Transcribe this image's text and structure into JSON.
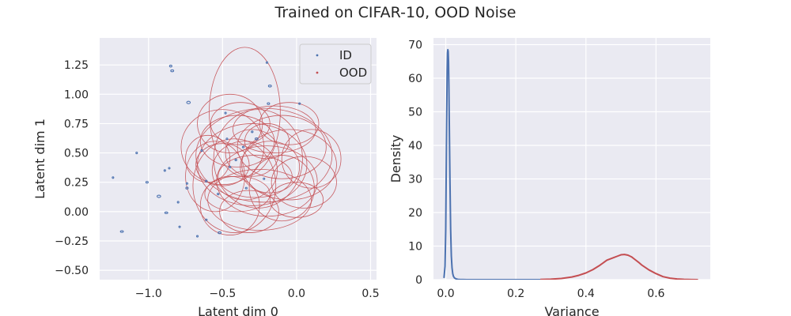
{
  "figure": {
    "title": "Trained on CIFAR-10, OOD Noise"
  },
  "colors": {
    "id": "#4c72b0",
    "ood": "#c44e52",
    "axes_bg": "#eaeaf2",
    "grid": "#ffffff"
  },
  "chart_data": [
    {
      "type": "scatter",
      "xlabel": "Latent dim 0",
      "ylabel": "Latent dim 1",
      "xlim": [
        -1.33,
        0.54
      ],
      "ylim": [
        -0.58,
        1.48
      ],
      "xticks": [
        -1.0,
        -0.5,
        0.0,
        0.5
      ],
      "xtick_labels": [
        "−1.0",
        "−0.5",
        "0.0",
        "0.5"
      ],
      "yticks": [
        -0.5,
        -0.25,
        0.0,
        0.25,
        0.5,
        0.75,
        1.0,
        1.25
      ],
      "ytick_labels": [
        "−0.50",
        "−0.25",
        "0.00",
        "0.25",
        "0.50",
        "0.75",
        "1.00",
        "1.25"
      ],
      "grid": true,
      "legend": {
        "position": "upper right",
        "entries": [
          "ID",
          "OOD"
        ]
      },
      "series": [
        {
          "name": "ID",
          "color": "#4c72b0",
          "marker": "ellipse-small",
          "points": [
            {
              "x": -0.85,
              "y": 1.24,
              "rx": 0.008,
              "ry": 0.008
            },
            {
              "x": -0.84,
              "y": 1.2,
              "rx": 0.01,
              "ry": 0.008
            },
            {
              "x": -0.2,
              "y": 1.27,
              "rx": 0.004,
              "ry": 0.004
            },
            {
              "x": -0.18,
              "y": 1.07,
              "rx": 0.01,
              "ry": 0.008
            },
            {
              "x": -0.73,
              "y": 0.93,
              "rx": 0.012,
              "ry": 0.01
            },
            {
              "x": 0.02,
              "y": 0.92,
              "rx": 0.004,
              "ry": 0.004
            },
            {
              "x": -0.19,
              "y": 0.92,
              "rx": 0.008,
              "ry": 0.008
            },
            {
              "x": -1.08,
              "y": 0.5,
              "rx": 0.005,
              "ry": 0.005
            },
            {
              "x": -0.86,
              "y": 0.37,
              "rx": 0.004,
              "ry": 0.004
            },
            {
              "x": -0.89,
              "y": 0.35,
              "rx": 0.005,
              "ry": 0.004
            },
            {
              "x": -1.24,
              "y": 0.29,
              "rx": 0.005,
              "ry": 0.005
            },
            {
              "x": -1.01,
              "y": 0.25,
              "rx": 0.008,
              "ry": 0.005
            },
            {
              "x": -0.74,
              "y": 0.24,
              "rx": 0.004,
              "ry": 0.004
            },
            {
              "x": -0.74,
              "y": 0.2,
              "rx": 0.008,
              "ry": 0.008
            },
            {
              "x": -0.93,
              "y": 0.13,
              "rx": 0.012,
              "ry": 0.01
            },
            {
              "x": -0.8,
              "y": 0.08,
              "rx": 0.004,
              "ry": 0.004
            },
            {
              "x": -0.88,
              "y": -0.01,
              "rx": 0.01,
              "ry": 0.006
            },
            {
              "x": -0.79,
              "y": -0.13,
              "rx": 0.004,
              "ry": 0.004
            },
            {
              "x": -1.18,
              "y": -0.17,
              "rx": 0.01,
              "ry": 0.006
            },
            {
              "x": -0.67,
              "y": -0.21,
              "rx": 0.004,
              "ry": 0.004
            },
            {
              "x": -0.61,
              "y": -0.07,
              "rx": 0.006,
              "ry": 0.006
            },
            {
              "x": -0.52,
              "y": -0.18,
              "rx": 0.01,
              "ry": 0.008
            },
            {
              "x": -0.61,
              "y": 0.26,
              "rx": 0.006,
              "ry": 0.006
            },
            {
              "x": -0.48,
              "y": 0.84,
              "rx": 0.004,
              "ry": 0.004
            },
            {
              "x": -0.3,
              "y": 0.68,
              "rx": 0.006,
              "ry": 0.006
            },
            {
              "x": -0.27,
              "y": 0.62,
              "rx": 0.01,
              "ry": 0.008
            },
            {
              "x": -0.36,
              "y": 0.55,
              "rx": 0.006,
              "ry": 0.006
            },
            {
              "x": -0.41,
              "y": 0.44,
              "rx": 0.006,
              "ry": 0.006
            },
            {
              "x": -0.45,
              "y": 0.38,
              "rx": 0.004,
              "ry": 0.004
            },
            {
              "x": -0.53,
              "y": 0.15,
              "rx": 0.006,
              "ry": 0.006
            },
            {
              "x": -0.47,
              "y": 0.62,
              "rx": 0.004,
              "ry": 0.004
            },
            {
              "x": -0.22,
              "y": 0.28,
              "rx": 0.004,
              "ry": 0.004
            },
            {
              "x": -0.34,
              "y": 0.2,
              "rx": 0.006,
              "ry": 0.006
            },
            {
              "x": -0.64,
              "y": 0.52,
              "rx": 0.004,
              "ry": 0.004
            }
          ]
        },
        {
          "name": "OOD",
          "color": "#c44e52",
          "marker": "ellipse-large",
          "points": [
            {
              "x": -0.35,
              "y": 0.85,
              "rx": 0.24,
              "ry": 0.55
            },
            {
              "x": -0.22,
              "y": 0.48,
              "rx": 0.46,
              "ry": 0.4
            },
            {
              "x": -0.42,
              "y": 0.22,
              "rx": 0.28,
              "ry": 0.4
            },
            {
              "x": -0.3,
              "y": 0.4,
              "rx": 0.37,
              "ry": 0.35
            },
            {
              "x": -0.1,
              "y": 0.55,
              "rx": 0.3,
              "ry": 0.27
            },
            {
              "x": -0.5,
              "y": 0.55,
              "rx": 0.28,
              "ry": 0.32
            },
            {
              "x": -0.2,
              "y": 0.26,
              "rx": 0.34,
              "ry": 0.3
            },
            {
              "x": -0.05,
              "y": 0.4,
              "rx": 0.32,
              "ry": 0.3
            },
            {
              "x": -0.35,
              "y": 0.35,
              "rx": 0.22,
              "ry": 0.25
            },
            {
              "x": -0.4,
              "y": 0.6,
              "rx": 0.25,
              "ry": 0.22
            },
            {
              "x": -0.25,
              "y": 0.1,
              "rx": 0.35,
              "ry": 0.26
            },
            {
              "x": -0.45,
              "y": 0.05,
              "rx": 0.2,
              "ry": 0.25
            },
            {
              "x": -0.15,
              "y": 0.7,
              "rx": 0.28,
              "ry": 0.2
            },
            {
              "x": -0.55,
              "y": 0.3,
              "rx": 0.2,
              "ry": 0.3
            },
            {
              "x": -0.3,
              "y": 0.5,
              "rx": 0.18,
              "ry": 0.2
            },
            {
              "x": 0.05,
              "y": 0.25,
              "rx": 0.22,
              "ry": 0.22
            },
            {
              "x": -0.28,
              "y": 0.3,
              "rx": 0.25,
              "ry": 0.18
            },
            {
              "x": -0.6,
              "y": 0.45,
              "rx": 0.15,
              "ry": 0.2
            },
            {
              "x": -0.18,
              "y": 0.38,
              "rx": 0.2,
              "ry": 0.22
            },
            {
              "x": -0.38,
              "y": 0.75,
              "rx": 0.2,
              "ry": 0.18
            },
            {
              "x": -0.05,
              "y": 0.75,
              "rx": 0.2,
              "ry": 0.18
            },
            {
              "x": -0.4,
              "y": 0.15,
              "rx": 0.22,
              "ry": 0.15
            },
            {
              "x": -0.2,
              "y": 0.6,
              "rx": 0.15,
              "ry": 0.15
            },
            {
              "x": -0.5,
              "y": 0.4,
              "rx": 0.18,
              "ry": 0.18
            },
            {
              "x": 0.0,
              "y": 0.1,
              "rx": 0.18,
              "ry": 0.15
            },
            {
              "x": -0.32,
              "y": 0.0,
              "rx": 0.2,
              "ry": 0.18
            },
            {
              "x": -0.1,
              "y": 0.2,
              "rx": 0.22,
              "ry": 0.28
            },
            {
              "x": 0.1,
              "y": 0.45,
              "rx": 0.2,
              "ry": 0.25
            },
            {
              "x": -0.45,
              "y": 0.75,
              "rx": 0.22,
              "ry": 0.25
            },
            {
              "x": -0.26,
              "y": 0.45,
              "rx": 0.3,
              "ry": 0.42
            }
          ]
        }
      ]
    },
    {
      "type": "line",
      "xlabel": "Variance",
      "ylabel": "Density",
      "xlim": [
        -0.035,
        0.755
      ],
      "ylim": [
        0,
        72
      ],
      "xticks": [
        0.0,
        0.2,
        0.4,
        0.6
      ],
      "xtick_labels": [
        "0.0",
        "0.2",
        "0.4",
        "0.6"
      ],
      "yticks": [
        0,
        10,
        20,
        30,
        40,
        50,
        60,
        70
      ],
      "ytick_labels": [
        "0",
        "10",
        "20",
        "30",
        "40",
        "50",
        "60",
        "70"
      ],
      "grid": true,
      "series": [
        {
          "name": "ID",
          "color": "#4c72b0",
          "x": [
            -0.005,
            -0.002,
            0.0,
            0.002,
            0.004,
            0.005,
            0.006,
            0.007,
            0.008,
            0.009,
            0.01,
            0.012,
            0.014,
            0.016,
            0.018,
            0.02,
            0.022,
            0.025,
            0.03,
            0.035,
            0.04,
            0.05,
            0.06,
            0.1,
            0.2,
            0.3
          ],
          "y": [
            0.5,
            4,
            15,
            40,
            62,
            67.5,
            68.5,
            68,
            65,
            58,
            48,
            30,
            15,
            7,
            3.5,
            1.8,
            1.0,
            0.5,
            0.2,
            0.1,
            0.05,
            0.02,
            0.01,
            0,
            0,
            0
          ]
        },
        {
          "name": "OOD",
          "color": "#c44e52",
          "x": [
            0.27,
            0.3,
            0.33,
            0.36,
            0.38,
            0.4,
            0.42,
            0.44,
            0.46,
            0.48,
            0.49,
            0.5,
            0.51,
            0.52,
            0.53,
            0.54,
            0.55,
            0.56,
            0.58,
            0.6,
            0.62,
            0.64,
            0.66,
            0.68,
            0.7,
            0.72
          ],
          "y": [
            0.05,
            0.15,
            0.35,
            0.8,
            1.3,
            2.0,
            3.0,
            4.3,
            5.8,
            6.6,
            7.0,
            7.4,
            7.5,
            7.3,
            6.8,
            6.0,
            5.2,
            4.3,
            2.9,
            1.8,
            0.9,
            0.45,
            0.2,
            0.08,
            0.03,
            0.01
          ]
        }
      ]
    }
  ]
}
